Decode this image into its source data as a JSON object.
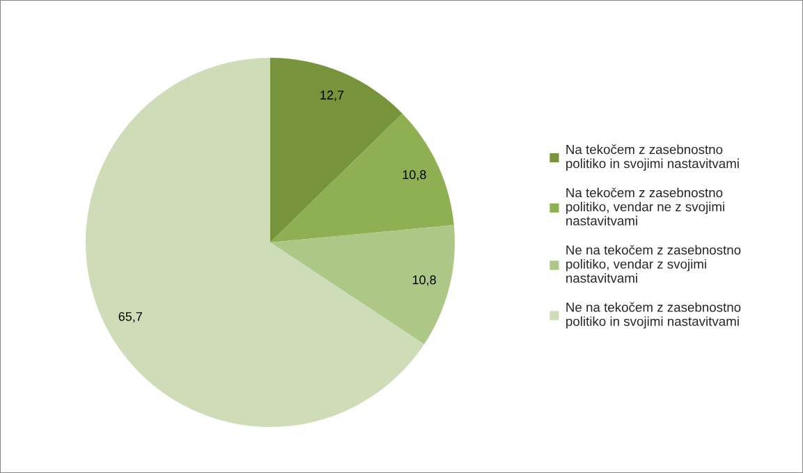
{
  "chart_data": {
    "type": "pie",
    "categories": [
      "Na tekočem z zasebnostno politiko in svojimi nastavitvami",
      "Na tekočem z zasebnostno politiko, vendar ne z svojimi nastavitvami",
      "Ne na tekočem z zasebnostno politiko, vendar z svojimi nastavitvami",
      "Ne na tekočem z zasebnostno politiko in svojimi nastavitvami"
    ],
    "values": [
      12.7,
      10.8,
      10.8,
      65.7
    ],
    "value_labels": [
      "12,7",
      "10,8",
      "10,8",
      "65,7"
    ],
    "colors": [
      "#77933c",
      "#8fb052",
      "#adc787",
      "#cfdcb8"
    ],
    "legend": "right"
  }
}
